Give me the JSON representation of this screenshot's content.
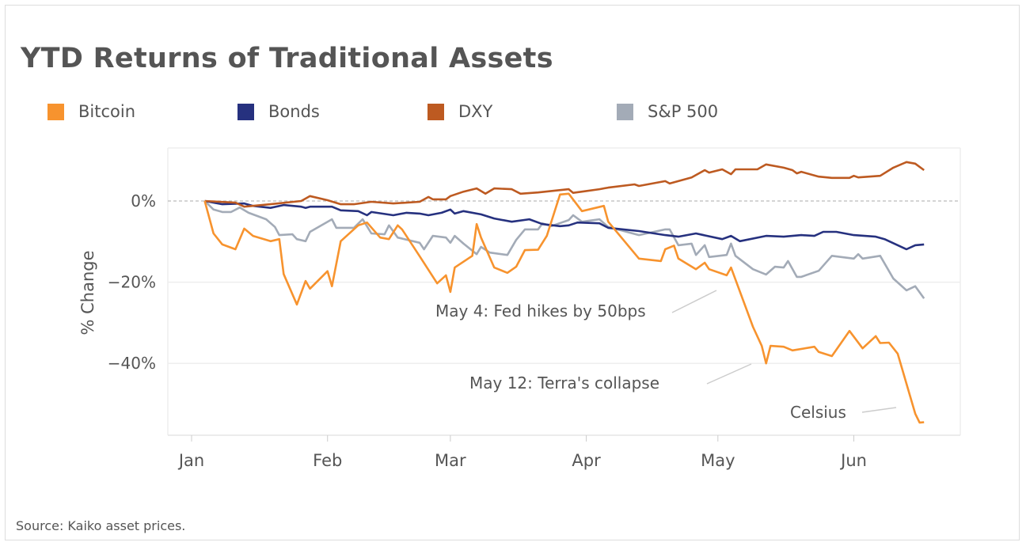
{
  "chart_data": {
    "type": "line",
    "title": "YTD Returns of Traditional Assets",
    "ylabel": "% Change",
    "xlabel": "",
    "ylim": [
      -57,
      13
    ],
    "yticks": [
      {
        "value": 0,
        "label": "0%"
      },
      {
        "value": -20,
        "label": "−20%"
      },
      {
        "value": -40,
        "label": "−40%"
      }
    ],
    "xticks": [
      "Jan",
      "Feb",
      "Mar",
      "Apr",
      "May",
      "Jun"
    ],
    "grid": true,
    "legend": "top",
    "series": [
      {
        "name": "Bitcoin",
        "color": "#F7932E",
        "points": [
          [
            "Jan 4",
            0
          ],
          [
            "Jan 6",
            -8
          ],
          [
            "Jan 8",
            -10.7
          ],
          [
            "Jan 11",
            -11.9
          ],
          [
            "Jan 13",
            -6.8
          ],
          [
            "Jan 15",
            -8.6
          ],
          [
            "Jan 19",
            -9.9
          ],
          [
            "Jan 21",
            -9.4
          ],
          [
            "Jan 22",
            -18
          ],
          [
            "Jan 25",
            -25.5
          ],
          [
            "Jan 27",
            -19.7
          ],
          [
            "Jan 28",
            -21.6
          ],
          [
            "Feb 1",
            -17.3
          ],
          [
            "Feb 2",
            -21
          ],
          [
            "Feb 4",
            -9.9
          ],
          [
            "Feb 8",
            -6
          ],
          [
            "Feb 10",
            -5.3
          ],
          [
            "Feb 13",
            -9
          ],
          [
            "Feb 15",
            -9.4
          ],
          [
            "Feb 17",
            -6
          ],
          [
            "Feb 18",
            -7
          ],
          [
            "Feb 22",
            -13.6
          ],
          [
            "Feb 26",
            -20.3
          ],
          [
            "Feb 28",
            -18.3
          ],
          [
            "Mar 1",
            -22.4
          ],
          [
            "Mar 2",
            -16.4
          ],
          [
            "Mar 6",
            -13.5
          ],
          [
            "Mar 7",
            -5.7
          ],
          [
            "Mar 8",
            -9
          ],
          [
            "Mar 11",
            -16.4
          ],
          [
            "Mar 14",
            -17.7
          ],
          [
            "Mar 16",
            -16.2
          ],
          [
            "Mar 18",
            -12.1
          ],
          [
            "Mar 21",
            -12
          ],
          [
            "Mar 23",
            -8.6
          ],
          [
            "Mar 26",
            1.6
          ],
          [
            "Mar 28",
            1.8
          ],
          [
            "Mar 31",
            -2.5
          ],
          [
            "Apr 5",
            -1.2
          ],
          [
            "Apr 6",
            -5.1
          ],
          [
            "Apr 13",
            -14.2
          ],
          [
            "Apr 18",
            -14.8
          ],
          [
            "Apr 19",
            -11.9
          ],
          [
            "Apr 21",
            -11
          ],
          [
            "Apr 22",
            -14.2
          ],
          [
            "Apr 26",
            -16.8
          ],
          [
            "Apr 28",
            -15.2
          ],
          [
            "Apr 29",
            -16.8
          ],
          [
            "May 3",
            -18.3
          ],
          [
            "May 4",
            -16.4
          ],
          [
            "May 9",
            -31
          ],
          [
            "May 11",
            -35.7
          ],
          [
            "May 12",
            -40
          ],
          [
            "May 13",
            -35.7
          ],
          [
            "May 16",
            -35.9
          ],
          [
            "May 18",
            -36.8
          ],
          [
            "May 23",
            -35.9
          ],
          [
            "May 24",
            -37.2
          ],
          [
            "May 27",
            -38.2
          ],
          [
            "May 31",
            -32
          ],
          [
            "Jun 3",
            -36.3
          ],
          [
            "Jun 6",
            -33.3
          ],
          [
            "Jun 7",
            -35
          ],
          [
            "Jun 9",
            -34.9
          ],
          [
            "Jun 11",
            -37.6
          ],
          [
            "Jun 15",
            -52.4
          ],
          [
            "Jun 16",
            -54.6
          ],
          [
            "Jun 17",
            -54.5
          ]
        ]
      },
      {
        "name": "Bonds",
        "color": "#26317F",
        "points": [
          [
            "Jan 4",
            0
          ],
          [
            "Jan 8",
            -0.8
          ],
          [
            "Jan 13",
            -0.6
          ],
          [
            "Jan 15",
            -1.2
          ],
          [
            "Jan 19",
            -1.7
          ],
          [
            "Jan 22",
            -1
          ],
          [
            "Jan 26",
            -1.4
          ],
          [
            "Jan 27",
            -1.7
          ],
          [
            "Jan 28",
            -1.4
          ],
          [
            "Feb 2",
            -1.4
          ],
          [
            "Feb 4",
            -2.3
          ],
          [
            "Feb 8",
            -2.5
          ],
          [
            "Feb 10",
            -3.5
          ],
          [
            "Feb 11",
            -2.7
          ],
          [
            "Feb 16",
            -3.5
          ],
          [
            "Feb 19",
            -2.9
          ],
          [
            "Feb 22",
            -3.1
          ],
          [
            "Feb 24",
            -3.5
          ],
          [
            "Feb 27",
            -2.9
          ],
          [
            "Mar 1",
            -2.1
          ],
          [
            "Mar 2",
            -3.1
          ],
          [
            "Mar 4",
            -2.5
          ],
          [
            "Mar 8",
            -3.3
          ],
          [
            "Mar 11",
            -4.3
          ],
          [
            "Mar 15",
            -5.1
          ],
          [
            "Mar 19",
            -4.5
          ],
          [
            "Mar 22",
            -5.7
          ],
          [
            "Mar 26",
            -6.2
          ],
          [
            "Mar 28",
            -6
          ],
          [
            "Mar 30",
            -5.3
          ],
          [
            "Apr 4",
            -5.5
          ],
          [
            "Apr 6",
            -6.6
          ],
          [
            "Apr 13",
            -7.4
          ],
          [
            "Apr 19",
            -8.4
          ],
          [
            "Apr 22",
            -8.8
          ],
          [
            "Apr 26",
            -8
          ],
          [
            "May 2",
            -9.4
          ],
          [
            "May 4",
            -8.6
          ],
          [
            "May 6",
            -9.9
          ],
          [
            "May 12",
            -8.6
          ],
          [
            "May 16",
            -8.8
          ],
          [
            "May 20",
            -8.4
          ],
          [
            "May 23",
            -8.6
          ],
          [
            "May 25",
            -7.6
          ],
          [
            "May 28",
            -7.6
          ],
          [
            "Jun 1",
            -8.4
          ],
          [
            "Jun 6",
            -8.8
          ],
          [
            "Jun 8",
            -9.4
          ],
          [
            "Jun 13",
            -11.9
          ],
          [
            "Jun 15",
            -10.9
          ],
          [
            "Jun 17",
            -10.7
          ]
        ]
      },
      {
        "name": "DXY",
        "color": "#BD5A21",
        "points": [
          [
            "Jan 4",
            0
          ],
          [
            "Jan 11",
            -0.4
          ],
          [
            "Jan 13",
            -1.4
          ],
          [
            "Jan 19",
            -0.8
          ],
          [
            "Jan 26",
            0
          ],
          [
            "Jan 28",
            1.2
          ],
          [
            "Feb 1",
            0.2
          ],
          [
            "Feb 4",
            -0.8
          ],
          [
            "Feb 7",
            -0.8
          ],
          [
            "Feb 11",
            -0.2
          ],
          [
            "Feb 16",
            -0.6
          ],
          [
            "Feb 22",
            -0.2
          ],
          [
            "Feb 24",
            1
          ],
          [
            "Feb 25",
            0.4
          ],
          [
            "Feb 28",
            0.4
          ],
          [
            "Mar 1",
            1.2
          ],
          [
            "Mar 4",
            2.3
          ],
          [
            "Mar 7",
            3.1
          ],
          [
            "Mar 9",
            1.8
          ],
          [
            "Mar 11",
            3.1
          ],
          [
            "Mar 15",
            2.9
          ],
          [
            "Mar 17",
            1.8
          ],
          [
            "Mar 21",
            2.1
          ],
          [
            "Mar 28",
            2.9
          ],
          [
            "Mar 29",
            2
          ],
          [
            "Mar 31",
            2.3
          ],
          [
            "Apr 4",
            2.9
          ],
          [
            "Apr 6",
            3.3
          ],
          [
            "Apr 12",
            4.1
          ],
          [
            "Apr 13",
            3.7
          ],
          [
            "Apr 19",
            4.9
          ],
          [
            "Apr 20",
            4.3
          ],
          [
            "Apr 25",
            5.8
          ],
          [
            "Apr 28",
            7.6
          ],
          [
            "Apr 29",
            7
          ],
          [
            "May 2",
            7.8
          ],
          [
            "May 4",
            6.6
          ],
          [
            "May 5",
            7.8
          ],
          [
            "May 10",
            7.8
          ],
          [
            "May 12",
            9
          ],
          [
            "May 16",
            8.2
          ],
          [
            "May 18",
            7.6
          ],
          [
            "May 19",
            6.8
          ],
          [
            "May 20",
            7.2
          ],
          [
            "May 24",
            6
          ],
          [
            "May 27",
            5.7
          ],
          [
            "May 31",
            5.7
          ],
          [
            "Jun 1",
            6.2
          ],
          [
            "Jun 2",
            5.8
          ],
          [
            "Jun 7",
            6.2
          ],
          [
            "Jun 10",
            8.2
          ],
          [
            "Jun 13",
            9.6
          ],
          [
            "Jun 15",
            9.2
          ],
          [
            "Jun 17",
            7.6
          ]
        ]
      },
      {
        "name": "S&P 500",
        "color": "#A3ABB7",
        "points": [
          [
            "Jan 4",
            0
          ],
          [
            "Jan 6",
            -2.1
          ],
          [
            "Jan 8",
            -2.7
          ],
          [
            "Jan 10",
            -2.7
          ],
          [
            "Jan 12",
            -1.6
          ],
          [
            "Jan 14",
            -2.9
          ],
          [
            "Jan 18",
            -4.5
          ],
          [
            "Jan 20",
            -6.4
          ],
          [
            "Jan 21",
            -8.4
          ],
          [
            "Jan 24",
            -8.2
          ],
          [
            "Jan 25",
            -9.4
          ],
          [
            "Jan 27",
            -9.9
          ],
          [
            "Jan 28",
            -7.6
          ],
          [
            "Feb 2",
            -4.5
          ],
          [
            "Feb 3",
            -6.6
          ],
          [
            "Feb 7",
            -6.6
          ],
          [
            "Feb 9",
            -4.5
          ],
          [
            "Feb 11",
            -8
          ],
          [
            "Feb 14",
            -8.2
          ],
          [
            "Feb 15",
            -6
          ],
          [
            "Feb 17",
            -9
          ],
          [
            "Feb 22",
            -10.3
          ],
          [
            "Feb 23",
            -11.9
          ],
          [
            "Feb 25",
            -8.6
          ],
          [
            "Feb 28",
            -9
          ],
          [
            "Mar 1",
            -10.3
          ],
          [
            "Mar 2",
            -8.6
          ],
          [
            "Mar 4",
            -10.5
          ],
          [
            "Mar 7",
            -13.1
          ],
          [
            "Mar 8",
            -11.3
          ],
          [
            "Mar 10",
            -12.7
          ],
          [
            "Mar 14",
            -13.3
          ],
          [
            "Mar 16",
            -9.6
          ],
          [
            "Mar 18",
            -7
          ],
          [
            "Mar 21",
            -7
          ],
          [
            "Mar 22",
            -5.5
          ],
          [
            "Mar 24",
            -6.2
          ],
          [
            "Mar 28",
            -4.7
          ],
          [
            "Mar 29",
            -3.5
          ],
          [
            "Mar 31",
            -5.1
          ],
          [
            "Apr 4",
            -4.5
          ],
          [
            "Apr 6",
            -6.4
          ],
          [
            "Apr 13",
            -8.4
          ],
          [
            "Apr 19",
            -7
          ],
          [
            "Apr 20",
            -7
          ],
          [
            "Apr 22",
            -10.9
          ],
          [
            "Apr 25",
            -10.5
          ],
          [
            "Apr 26",
            -13.3
          ],
          [
            "Apr 28",
            -10.9
          ],
          [
            "Apr 29",
            -13.8
          ],
          [
            "May 3",
            -13.3
          ],
          [
            "May 4",
            -10.5
          ],
          [
            "May 5",
            -13.5
          ],
          [
            "May 9",
            -16.8
          ],
          [
            "May 12",
            -18.1
          ],
          [
            "May 14",
            -16.2
          ],
          [
            "May 16",
            -16.4
          ],
          [
            "May 17",
            -14.8
          ],
          [
            "May 19",
            -18.7
          ],
          [
            "May 20",
            -18.7
          ],
          [
            "May 24",
            -17.2
          ],
          [
            "May 27",
            -13.5
          ],
          [
            "Jun 1",
            -14.2
          ],
          [
            "Jun 2",
            -13.1
          ],
          [
            "Jun 3",
            -14.2
          ],
          [
            "Jun 7",
            -13.5
          ],
          [
            "Jun 10",
            -19.1
          ],
          [
            "Jun 13",
            -22
          ],
          [
            "Jun 15",
            -21
          ],
          [
            "Jun 17",
            -24
          ]
        ]
      }
    ],
    "annotations": [
      {
        "text": "May 4: Fed hikes by 50bps"
      },
      {
        "text": "May 12: Terra's collapse"
      },
      {
        "text": "Celsius"
      }
    ]
  },
  "source": "Source: Kaiko asset prices."
}
